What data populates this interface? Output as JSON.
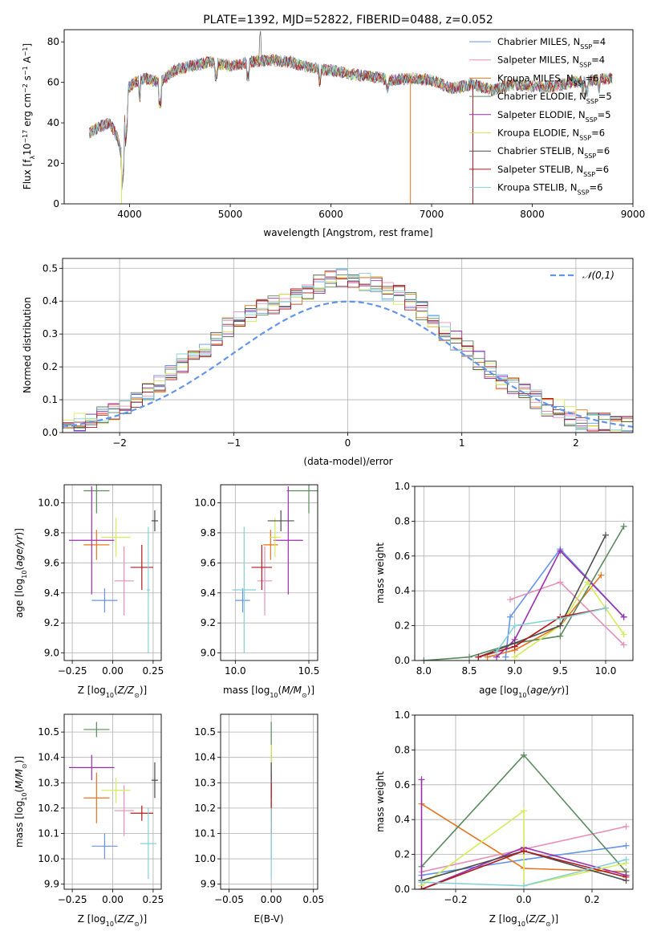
{
  "colors": [
    "#6495ed",
    "#e88fb8",
    "#e5751f",
    "#5a8a5e",
    "#9c2fae",
    "#d4ec5c",
    "#4d4d4d",
    "#b3191e",
    "#85d1d8"
  ],
  "chart_data": [
    {
      "id": "spectrum",
      "type": "line",
      "title": "PLATE=1392, MJD=52822, FIBERID=0488, z=0.052",
      "xlabel": "wavelength [Angstrom, rest frame]",
      "ylabel": "Flux [f_λ10^-17 erg cm^-2 s^-1 A^-1]",
      "xlim": [
        3350,
        9000
      ],
      "ylim": [
        0,
        86
      ],
      "xticks": [
        "4000",
        "5000",
        "6000",
        "7000",
        "8000",
        "9000"
      ],
      "yticks": [
        "0",
        "20",
        "40",
        "60",
        "80"
      ],
      "legend_position": "upper right",
      "series": [
        {
          "name": "Chabrier MILES, N_SSP=4"
        },
        {
          "name": "Salpeter MILES, N_SSP=4"
        },
        {
          "name": "Kroupa MILES, N_SSP=6"
        },
        {
          "name": "Chabrier ELODIE, N_SSP=5"
        },
        {
          "name": "Salpeter ELODIE, N_SSP=5"
        },
        {
          "name": "Kroupa ELODIE, N_SSP=6"
        },
        {
          "name": "Chabrier STELIB, N_SSP=6"
        },
        {
          "name": "Salpeter STELIB, N_SSP=6"
        },
        {
          "name": "Kroupa STELIB, N_SSP=6"
        }
      ],
      "continuum": {
        "x": [
          3600,
          3700,
          3800,
          3880,
          3920,
          3980,
          4050,
          4150,
          4300,
          4450,
          4600,
          4800,
          5000,
          5200,
          5400,
          5600,
          5800,
          6000,
          6200,
          6400,
          6600,
          6800,
          7000,
          7200,
          7400,
          7600,
          7800,
          8000,
          8200,
          8400,
          8600,
          8800
        ],
        "y": [
          35,
          38,
          40,
          33,
          24,
          57,
          60,
          62,
          60,
          66,
          68,
          70,
          68,
          70,
          71,
          70,
          67,
          66,
          64,
          63,
          61,
          62,
          61,
          57,
          59,
          56,
          59,
          58,
          58,
          60,
          61,
          62
        ]
      }
    },
    {
      "id": "residuals",
      "type": "histogram",
      "xlabel": "(data-model)/error",
      "ylabel": "Normed distribution",
      "xlim": [
        -2.5,
        2.5
      ],
      "ylim": [
        0,
        0.53
      ],
      "xticks": [
        "−2",
        "−1",
        "0",
        "1",
        "2"
      ],
      "yticks": [
        "0.0",
        "0.1",
        "0.2",
        "0.3",
        "0.4",
        "0.5"
      ],
      "reference_label": "𝒩(0,1)",
      "bins_start": -2.5,
      "bin_width": 0.1,
      "bin_values": [
        0.02,
        0.03,
        0.04,
        0.05,
        0.06,
        0.08,
        0.1,
        0.12,
        0.15,
        0.18,
        0.21,
        0.24,
        0.26,
        0.29,
        0.32,
        0.35,
        0.36,
        0.38,
        0.39,
        0.4,
        0.41,
        0.43,
        0.45,
        0.47,
        0.47,
        0.47,
        0.46,
        0.45,
        0.43,
        0.42,
        0.4,
        0.37,
        0.35,
        0.31,
        0.28,
        0.25,
        0.22,
        0.19,
        0.16,
        0.14,
        0.12,
        0.1,
        0.08,
        0.07,
        0.05,
        0.04,
        0.03,
        0.03,
        0.02,
        0.02
      ]
    },
    {
      "id": "age-vs-z",
      "type": "errorbar",
      "xlabel": "Z [log10(Z/Z⊙)]",
      "ylabel": "age  [log10(age/yr)]",
      "xlim": [
        -0.3,
        0.3
      ],
      "ylim": [
        8.95,
        10.12
      ],
      "xticks": [
        {
          "v": -0.25,
          "t": "−0.25"
        },
        {
          "v": 0,
          "t": "0.00"
        },
        {
          "v": 0.25,
          "t": "0.25"
        }
      ],
      "yticks": [
        {
          "v": 9.0,
          "t": "9.0"
        },
        {
          "v": 9.2,
          "t": "9.2"
        },
        {
          "v": 9.4,
          "t": "9.4"
        },
        {
          "v": 9.6,
          "t": "9.6"
        },
        {
          "v": 9.8,
          "t": "9.8"
        },
        {
          "v": 10.0,
          "t": "10.0"
        }
      ],
      "points": [
        {
          "x": -0.05,
          "xe": 0.08,
          "y": 9.35,
          "ye": 0.08
        },
        {
          "x": 0.07,
          "xe": 0.06,
          "y": 9.48,
          "ye": 0.23
        },
        {
          "x": -0.1,
          "xe": 0.08,
          "y": 9.72,
          "ye": 0.1
        },
        {
          "x": -0.1,
          "xe": 0.08,
          "y": 10.08,
          "ye": 0.15
        },
        {
          "x": -0.13,
          "xe": 0.14,
          "y": 9.75,
          "ye": 0.36
        },
        {
          "x": 0.02,
          "xe": 0.09,
          "y": 9.77,
          "ye": 0.13
        },
        {
          "x": 0.26,
          "xe": 0.02,
          "y": 9.88,
          "ye": 0.07
        },
        {
          "x": 0.18,
          "xe": 0.07,
          "y": 9.57,
          "ye": 0.15
        },
        {
          "x": 0.22,
          "xe": 0.01,
          "y": 9.42,
          "ye": 0.42
        }
      ]
    },
    {
      "id": "age-vs-mass",
      "type": "errorbar",
      "xlabel": "mass [log10(M/M⊙)]",
      "ylabel": "",
      "xlim": [
        9.9,
        10.56
      ],
      "ylim": [
        8.95,
        10.12
      ],
      "xticks": [
        {
          "v": 10.0,
          "t": "10.0"
        },
        {
          "v": 10.5,
          "t": "10.5"
        }
      ],
      "yticks": [
        {
          "v": 9.0,
          "t": "9.0"
        },
        {
          "v": 9.2,
          "t": "9.2"
        },
        {
          "v": 9.4,
          "t": "9.4"
        },
        {
          "v": 9.6,
          "t": "9.6"
        },
        {
          "v": 9.8,
          "t": "9.8"
        },
        {
          "v": 10.0,
          "t": "10.0"
        }
      ],
      "points": [
        {
          "x": 10.05,
          "xe": 0.05,
          "y": 9.35,
          "ye": 0.08
        },
        {
          "x": 10.2,
          "xe": 0.05,
          "y": 9.48,
          "ye": 0.23
        },
        {
          "x": 10.24,
          "xe": 0.05,
          "y": 9.72,
          "ye": 0.1
        },
        {
          "x": 10.5,
          "xe": 0.15,
          "y": 10.08,
          "ye": 0.15
        },
        {
          "x": 10.36,
          "xe": 0.1,
          "y": 9.75,
          "ye": 0.36
        },
        {
          "x": 10.27,
          "xe": 0.04,
          "y": 9.77,
          "ye": 0.13
        },
        {
          "x": 10.31,
          "xe": 0.09,
          "y": 9.88,
          "ye": 0.07
        },
        {
          "x": 10.18,
          "xe": 0.07,
          "y": 9.57,
          "ye": 0.15
        },
        {
          "x": 10.06,
          "xe": 0.08,
          "y": 9.42,
          "ye": 0.42
        }
      ]
    },
    {
      "id": "weight-vs-age",
      "type": "line",
      "xlabel": "age  [log10(age/yr)]",
      "ylabel": "mass weight",
      "xlim": [
        7.9,
        10.3
      ],
      "ylim": [
        0,
        1.0
      ],
      "xticks": [
        {
          "v": 8.0,
          "t": "8.0"
        },
        {
          "v": 8.5,
          "t": "8.5"
        },
        {
          "v": 9.0,
          "t": "9.0"
        },
        {
          "v": 9.5,
          "t": "9.5"
        },
        {
          "v": 10.0,
          "t": "10.0"
        }
      ],
      "yticks": [
        {
          "v": 0,
          "t": "0.0"
        },
        {
          "v": 0.2,
          "t": "0.2"
        },
        {
          "v": 0.4,
          "t": "0.4"
        },
        {
          "v": 0.6,
          "t": "0.6"
        },
        {
          "v": 0.8,
          "t": "0.8"
        },
        {
          "v": 1.0,
          "t": "1.0"
        }
      ],
      "series": [
        {
          "x": [
            8.9,
            8.95,
            9.5,
            10.2
          ],
          "y": [
            0.02,
            0.25,
            0.64,
            0.25
          ]
        },
        {
          "x": [
            8.95,
            9.5,
            10.2
          ],
          "y": [
            0.35,
            0.45,
            0.09
          ]
        },
        {
          "x": [
            8.7,
            9.0,
            9.5,
            9.95
          ],
          "y": [
            0.02,
            0.06,
            0.2,
            0.49
          ]
        },
        {
          "x": [
            8.0,
            8.5,
            9.0,
            9.5,
            10.2
          ],
          "y": [
            0.0,
            0.02,
            0.1,
            0.14,
            0.77
          ]
        },
        {
          "x": [
            8.8,
            9.0,
            9.5,
            10.2
          ],
          "y": [
            0.02,
            0.12,
            0.63,
            0.25
          ]
        },
        {
          "x": [
            9.0,
            9.5,
            9.8,
            10.2
          ],
          "y": [
            0.02,
            0.2,
            0.45,
            0.15
          ]
        },
        {
          "x": [
            8.6,
            9.0,
            9.5,
            10.0
          ],
          "y": [
            0.02,
            0.1,
            0.2,
            0.72
          ]
        },
        {
          "x": [
            8.6,
            9.0,
            9.5,
            10.0
          ],
          "y": [
            0.02,
            0.08,
            0.25,
            0.3
          ]
        },
        {
          "x": [
            8.8,
            9.0,
            9.5,
            10.0
          ],
          "y": [
            0.05,
            0.2,
            0.24,
            0.3
          ]
        }
      ]
    },
    {
      "id": "mass-vs-z",
      "type": "errorbar",
      "xlabel": "Z [log10(Z/Z⊙)]",
      "ylabel": "mass [log10(M/M⊙)]",
      "xlim": [
        -0.3,
        0.3
      ],
      "ylim": [
        9.88,
        10.57
      ],
      "xticks": [
        {
          "v": -0.25,
          "t": "−0.25"
        },
        {
          "v": 0,
          "t": "0.00"
        },
        {
          "v": 0.25,
          "t": "0.25"
        }
      ],
      "yticks": [
        {
          "v": 9.9,
          "t": "9.9"
        },
        {
          "v": 10.0,
          "t": "10.0"
        },
        {
          "v": 10.1,
          "t": "10.1"
        },
        {
          "v": 10.2,
          "t": "10.2"
        },
        {
          "v": 10.3,
          "t": "10.3"
        },
        {
          "v": 10.4,
          "t": "10.4"
        },
        {
          "v": 10.5,
          "t": "10.5"
        }
      ],
      "points": [
        {
          "x": -0.05,
          "xe": 0.08,
          "y": 10.05,
          "ye": 0.05
        },
        {
          "x": 0.07,
          "xe": 0.06,
          "y": 10.19,
          "ye": 0.1
        },
        {
          "x": -0.1,
          "xe": 0.08,
          "y": 10.24,
          "ye": 0.1
        },
        {
          "x": -0.1,
          "xe": 0.08,
          "y": 10.51,
          "ye": 0.03
        },
        {
          "x": -0.13,
          "xe": 0.14,
          "y": 10.36,
          "ye": 0.05
        },
        {
          "x": 0.02,
          "xe": 0.09,
          "y": 10.27,
          "ye": 0.05
        },
        {
          "x": 0.26,
          "xe": 0.02,
          "y": 10.31,
          "ye": 0.07
        },
        {
          "x": 0.18,
          "xe": 0.07,
          "y": 10.18,
          "ye": 0.03
        },
        {
          "x": 0.22,
          "xe": 0.05,
          "y": 10.06,
          "ye": 0.14
        }
      ]
    },
    {
      "id": "mass-vs-ebv",
      "type": "errorbar",
      "xlabel": "E(B-V)",
      "ylabel": "",
      "xlim": [
        -0.06,
        0.055
      ],
      "ylim": [
        9.88,
        10.57
      ],
      "xticks": [
        {
          "v": -0.05,
          "t": "−0.05"
        },
        {
          "v": 0,
          "t": "0.00"
        },
        {
          "v": 0.05,
          "t": "0.05"
        }
      ],
      "yticks": [
        {
          "v": 9.9,
          "t": "9.9"
        },
        {
          "v": 10.0,
          "t": "10.0"
        },
        {
          "v": 10.1,
          "t": "10.1"
        },
        {
          "v": 10.2,
          "t": "10.2"
        },
        {
          "v": 10.3,
          "t": "10.3"
        },
        {
          "v": 10.4,
          "t": "10.4"
        },
        {
          "v": 10.5,
          "t": "10.5"
        }
      ],
      "points": [
        {
          "x": 0,
          "xe": 0,
          "y": 10.05,
          "ye": 0.05
        },
        {
          "x": 0,
          "xe": 0,
          "y": 10.19,
          "ye": 0.1
        },
        {
          "x": 0,
          "xe": 0,
          "y": 10.24,
          "ye": 0.1
        },
        {
          "x": 0,
          "xe": 0,
          "y": 10.47,
          "ye": 0.07
        },
        {
          "x": 0,
          "xe": 0,
          "y": 10.36,
          "ye": 0.05
        },
        {
          "x": 0,
          "xe": 0,
          "y": 10.4,
          "ye": 0.05
        },
        {
          "x": 0,
          "xe": 0,
          "y": 10.31,
          "ye": 0.07
        },
        {
          "x": 0,
          "xe": 0,
          "y": 10.2,
          "ye": 0.1
        },
        {
          "x": 0,
          "xe": 0,
          "y": 10.06,
          "ye": 0.14
        }
      ]
    },
    {
      "id": "weight-vs-z",
      "type": "line",
      "xlabel": "Z [log10(Z/Z⊙)]",
      "ylabel": "mass weight",
      "xlim": [
        -0.32,
        0.32
      ],
      "ylim": [
        0,
        1.0
      ],
      "xticks": [
        {
          "v": -0.2,
          "t": "−0.2"
        },
        {
          "v": 0,
          "t": "0.0"
        },
        {
          "v": 0.2,
          "t": "0.2"
        }
      ],
      "yticks": [
        {
          "v": 0,
          "t": "0.0"
        },
        {
          "v": 0.2,
          "t": "0.2"
        },
        {
          "v": 0.4,
          "t": "0.4"
        },
        {
          "v": 0.6,
          "t": "0.6"
        },
        {
          "v": 0.8,
          "t": "0.8"
        },
        {
          "v": 1.0,
          "t": "1.0"
        }
      ],
      "series": [
        {
          "x": [
            -0.3,
            0,
            0.3
          ],
          "y": [
            0.08,
            0.17,
            0.25
          ]
        },
        {
          "x": [
            -0.3,
            0.3
          ],
          "y": [
            0.1,
            0.36
          ]
        },
        {
          "x": [
            -0.3,
            0,
            0.3
          ],
          "y": [
            0.49,
            0.12,
            0.1
          ]
        },
        {
          "x": [
            -0.3,
            0,
            0.3
          ],
          "y": [
            0.13,
            0.77,
            0.1
          ]
        },
        {
          "x": [
            -0.3,
            -0.3,
            0,
            0.3
          ],
          "y": [
            0.63,
            0.0,
            0.24,
            0.08
          ]
        },
        {
          "x": [
            -0.3,
            0,
            0,
            0.3
          ],
          "y": [
            0.02,
            0.45,
            0.02,
            0.15
          ]
        },
        {
          "x": [
            -0.3,
            0,
            0.3
          ],
          "y": [
            0.05,
            0.22,
            0.05
          ]
        },
        {
          "x": [
            -0.3,
            0,
            0.3
          ],
          "y": [
            0.0,
            0.22,
            0.07
          ]
        },
        {
          "x": [
            -0.3,
            0,
            0.3
          ],
          "y": [
            0.04,
            0.02,
            0.17
          ]
        }
      ]
    }
  ]
}
